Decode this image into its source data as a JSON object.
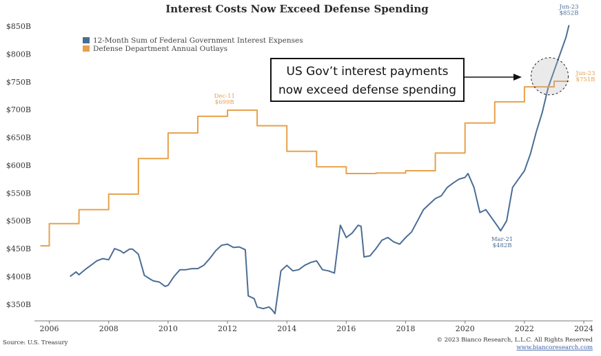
{
  "chart_data": {
    "type": "line",
    "title": "Interest Costs Now Exceed Defense Spending",
    "ylim": [
      320,
      860
    ],
    "xlim": [
      2005.5,
      2024.3
    ],
    "yticks": [
      {
        "value": 350,
        "label": "$350B"
      },
      {
        "value": 400,
        "label": "$400B"
      },
      {
        "value": 450,
        "label": "$450B"
      },
      {
        "value": 500,
        "label": "$500B"
      },
      {
        "value": 550,
        "label": "$550B"
      },
      {
        "value": 600,
        "label": "$600B"
      },
      {
        "value": 650,
        "label": "$650B"
      },
      {
        "value": 700,
        "label": "$700B"
      },
      {
        "value": 750,
        "label": "$750B"
      },
      {
        "value": 800,
        "label": "$800B"
      },
      {
        "value": 850,
        "label": "$850B"
      }
    ],
    "xticks": [
      {
        "value": 2006,
        "label": "2006"
      },
      {
        "value": 2008,
        "label": "2008"
      },
      {
        "value": 2010,
        "label": "2010"
      },
      {
        "value": 2012,
        "label": "2012"
      },
      {
        "value": 2014,
        "label": "2014"
      },
      {
        "value": 2016,
        "label": "2016"
      },
      {
        "value": 2018,
        "label": "2018"
      },
      {
        "value": 2020,
        "label": "2020"
      },
      {
        "value": 2022,
        "label": "2022"
      },
      {
        "value": 2024,
        "label": "2024"
      }
    ],
    "legend_position": "top-left",
    "series": [
      {
        "name": "12-Month Sum of Federal Government Interest Expenses",
        "color": "#4a6d94",
        "x": [
          2006.7,
          2006.9,
          2007.0,
          2007.2,
          2007.4,
          2007.6,
          2007.8,
          2008.0,
          2008.2,
          2008.4,
          2008.5,
          2008.7,
          2008.8,
          2009.0,
          2009.2,
          2009.4,
          2009.5,
          2009.7,
          2009.9,
          2010.0,
          2010.2,
          2010.4,
          2010.6,
          2010.8,
          2011.0,
          2011.2,
          2011.4,
          2011.6,
          2011.8,
          2012.0,
          2012.2,
          2012.4,
          2012.6,
          2012.7,
          2012.9,
          2013.0,
          2013.2,
          2013.4,
          2013.5,
          2013.6,
          2013.8,
          2014.0,
          2014.2,
          2014.4,
          2014.6,
          2014.8,
          2015.0,
          2015.2,
          2015.4,
          2015.6,
          2015.8,
          2016.0,
          2016.2,
          2016.4,
          2016.5,
          2016.6,
          2016.8,
          2017.0,
          2017.2,
          2017.4,
          2017.6,
          2017.8,
          2018.0,
          2018.2,
          2018.4,
          2018.6,
          2018.8,
          2019.0,
          2019.2,
          2019.4,
          2019.6,
          2019.8,
          2020.0,
          2020.1,
          2020.3,
          2020.5,
          2020.7,
          2020.9,
          2021.1,
          2021.2,
          2021.4,
          2021.6,
          2021.8,
          2022.0,
          2022.2,
          2022.4,
          2022.6,
          2022.8,
          2023.0,
          2023.2,
          2023.4,
          2023.5
        ],
        "values": [
          400,
          408,
          403,
          412,
          420,
          428,
          432,
          430,
          450,
          446,
          442,
          449,
          449,
          440,
          402,
          395,
          392,
          390,
          382,
          384,
          400,
          412,
          412,
          414,
          414,
          420,
          432,
          446,
          456,
          458,
          452,
          453,
          448,
          365,
          360,
          345,
          342,
          345,
          340,
          333,
          410,
          420,
          410,
          412,
          420,
          425,
          428,
          412,
          410,
          406,
          492,
          470,
          478,
          492,
          490,
          435,
          437,
          450,
          465,
          470,
          462,
          458,
          470,
          480,
          500,
          520,
          530,
          540,
          545,
          560,
          568,
          575,
          578,
          585,
          560,
          515,
          520,
          505,
          490,
          482,
          500,
          560,
          575,
          590,
          620,
          660,
          695,
          740,
          770,
          800,
          830,
          852
        ]
      },
      {
        "name": "Defense Department Annual Outlays",
        "color": "#e8a04b",
        "step": true,
        "x": [
          2005.7,
          2006.0,
          2007.0,
          2008.0,
          2009.0,
          2010.0,
          2011.0,
          2012.0,
          2013.0,
          2014.0,
          2015.0,
          2016.0,
          2017.0,
          2018.0,
          2019.0,
          2020.0,
          2021.0,
          2022.0,
          2023.0,
          2023.5
        ],
        "values": [
          455,
          495,
          520,
          548,
          612,
          658,
          688,
          699,
          671,
          625,
          597,
          585,
          586,
          590,
          622,
          676,
          714,
          741,
          751,
          751
        ]
      }
    ],
    "annotations": [
      {
        "label": "Dec-11",
        "value_label": "$699B",
        "x": 2011.9,
        "y": 699,
        "color": "#e8a04b"
      },
      {
        "label": "Mar-21",
        "value_label": "$482B",
        "x": 2021.25,
        "y": 482,
        "color": "#4a6d94"
      },
      {
        "label": "Jun-23",
        "value_label": "$852B",
        "x": 2023.5,
        "y": 852,
        "color": "#4a6d94"
      },
      {
        "label": "Jun-23",
        "value_label": "$751B",
        "x": 2023.5,
        "y": 751,
        "color": "#e8a04b"
      }
    ],
    "callout": {
      "line1": "US Gov’t interest payments",
      "line2": "now exceed defense spending"
    }
  },
  "footer": {
    "source": "Source: U.S. Treasury",
    "copyright": "© 2023 Bianco Research, L.L.C. All Rights Reserved",
    "website": "www.biancoresearch.com"
  }
}
